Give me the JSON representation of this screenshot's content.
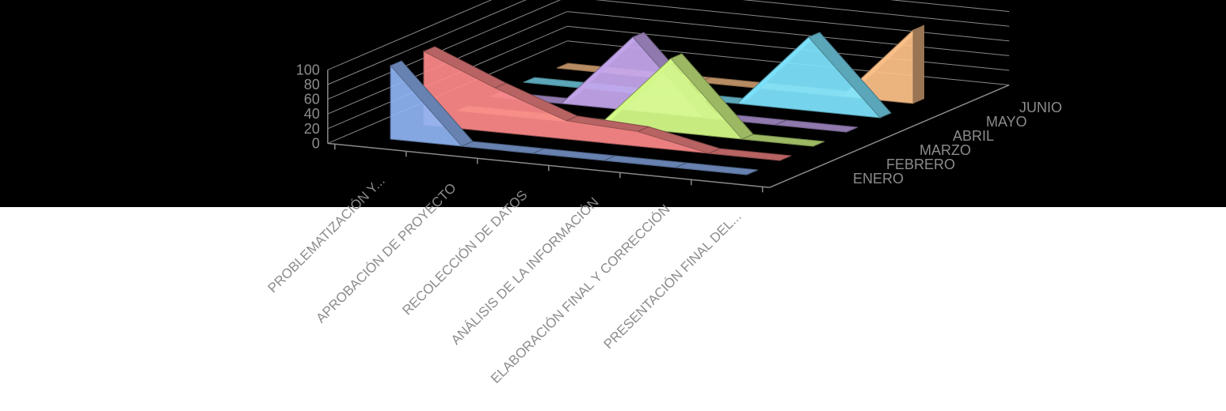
{
  "chart_data": {
    "type": "area",
    "variant": "3d-area",
    "categories": [
      "PROBLEMATIZACIÓN Y...",
      "APROBACIÓN DE PROYECTO",
      "RECOLECCIÓN DE DATOS",
      "ANÁLISIS DE LA INFORMACIÓN",
      "ELABORACIÓN FINAL Y CORRECCIÓN",
      "PRESENTACIÓN FINAL DEL..."
    ],
    "series": [
      {
        "name": "ENERO",
        "values": [
          100,
          0,
          0,
          0,
          0,
          0
        ],
        "color": "#8fb5f5"
      },
      {
        "name": "FEBRERO",
        "values": [
          100,
          60,
          25,
          20,
          0,
          0
        ],
        "color": "#ff8a8a"
      },
      {
        "name": "MARZO",
        "values": [
          0,
          0,
          0,
          100,
          0,
          0
        ],
        "color": "#d8ff8a"
      },
      {
        "name": "ABRIL",
        "values": [
          0,
          0,
          100,
          0,
          0,
          0
        ],
        "color": "#c7a8f0"
      },
      {
        "name": "MAYO",
        "values": [
          0,
          0,
          0,
          0,
          100,
          0
        ],
        "color": "#7fe6ff"
      },
      {
        "name": "JUNIO",
        "values": [
          0,
          0,
          0,
          0,
          0,
          100
        ],
        "color": "#ffc38a"
      }
    ],
    "yticks": [
      "100",
      "80",
      "60",
      "40",
      "20",
      "0"
    ],
    "ylim": [
      0,
      100
    ],
    "title": "",
    "xlabel": "",
    "ylabel": "",
    "legend": "none",
    "background": "#000000",
    "grid": true
  }
}
